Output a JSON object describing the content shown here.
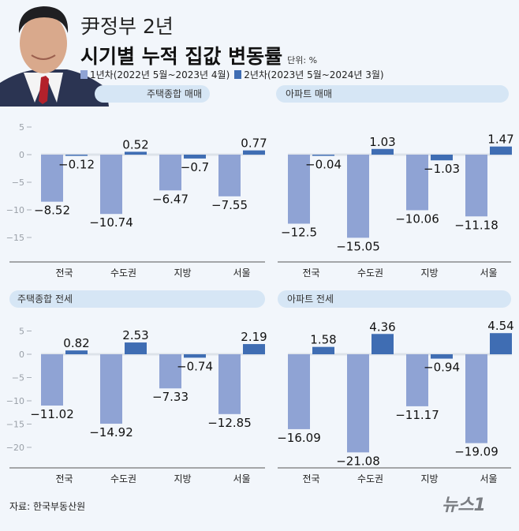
{
  "header": {
    "title_line1": "尹정부 2년",
    "title_line2": "시기별 누적 집값 변동률",
    "unit": "단위: %",
    "legend": [
      {
        "label": "1년차(2022년 5월~2023년 4월)",
        "color": "#8fa3d4"
      },
      {
        "label": "2년차(2023년 5월~2024년 3월)",
        "color": "#3f6db3"
      }
    ]
  },
  "source": "자료: 한국부동산원",
  "logo_text": "뉴스1",
  "chart_data": [
    {
      "type": "bar",
      "title": "주택종합 매매",
      "categories": [
        "전국",
        "수도권",
        "지방",
        "서울"
      ],
      "series": [
        {
          "name": "1년차(2022년 5월~2023년 4월)",
          "values": [
            -8.52,
            -10.74,
            -6.47,
            -7.55
          ]
        },
        {
          "name": "2년차(2023년 5월~2024년 3월)",
          "values": [
            -0.12,
            0.52,
            -0.7,
            0.77
          ]
        }
      ],
      "labels": [
        [
          "-8.52",
          "-10.74",
          "-6.47",
          "-7.55"
        ],
        [
          "-0.12",
          "0.52",
          "-0.7",
          "0.77"
        ]
      ],
      "yticks": [
        "5",
        "0",
        "-5",
        "-10",
        "-15"
      ],
      "ylim": [
        -19,
        6
      ]
    },
    {
      "type": "bar",
      "title": "아파트 매매",
      "categories": [
        "전국",
        "수도권",
        "지방",
        "서울"
      ],
      "series": [
        {
          "name": "1년차(2022년 5월~2023년 4월)",
          "values": [
            -12.5,
            -15.05,
            -10.06,
            -11.18
          ]
        },
        {
          "name": "2년차(2023년 5월~2024년 3월)",
          "values": [
            -0.04,
            1.03,
            -1.03,
            1.47
          ]
        }
      ],
      "labels": [
        [
          "-12.5",
          "-15.05",
          "-10.06",
          "-11.18"
        ],
        [
          "-0.04",
          "1.03",
          "-1.03",
          "1.47"
        ]
      ],
      "yticks": [],
      "ylim": [
        -19,
        6
      ]
    },
    {
      "type": "bar",
      "title": "주택종합 전세",
      "categories": [
        "전국",
        "수도권",
        "지방",
        "서울"
      ],
      "series": [
        {
          "name": "1년차(2022년 5월~2023년 4월)",
          "values": [
            -11.02,
            -14.92,
            -7.33,
            -12.85
          ]
        },
        {
          "name": "2년차(2023년 5월~2024년 3월)",
          "values": [
            0.82,
            2.53,
            -0.74,
            2.19
          ]
        }
      ],
      "labels": [
        [
          "-11.02",
          "-14.92",
          "-7.33",
          "-12.85"
        ],
        [
          "0.82",
          "2.53",
          "-0.74",
          "2.19"
        ]
      ],
      "yticks": [
        "5",
        "0",
        "-5",
        "-10",
        "-15",
        "-20"
      ],
      "ylim": [
        -24,
        7
      ]
    },
    {
      "type": "bar",
      "title": "아파트 전세",
      "categories": [
        "전국",
        "수도권",
        "지방",
        "서울"
      ],
      "series": [
        {
          "name": "1년차(2022년 5월~2023년 4월)",
          "values": [
            -16.09,
            -21.08,
            -11.17,
            -19.09
          ]
        },
        {
          "name": "2년차(2023년 5월~2024년 3월)",
          "values": [
            1.58,
            4.36,
            -0.94,
            4.54
          ]
        }
      ],
      "labels": [
        [
          "-16.09",
          "-21.08",
          "-11.17",
          "-19.09"
        ],
        [
          "1.58",
          "4.36",
          "-0.94",
          "4.54"
        ]
      ],
      "yticks": [],
      "ylim": [
        -24,
        7
      ]
    }
  ]
}
